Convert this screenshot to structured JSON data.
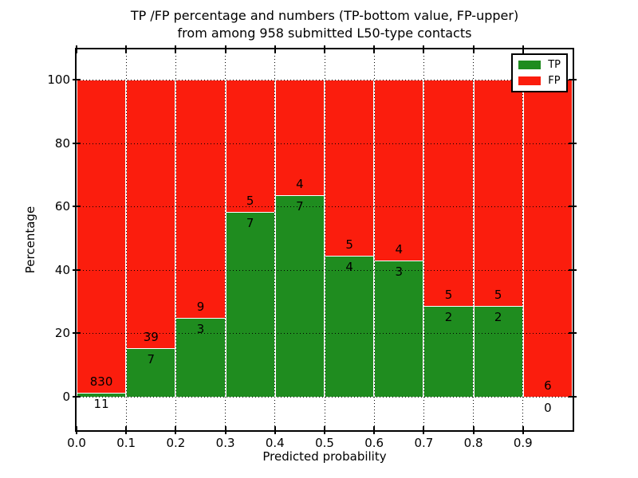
{
  "figure": {
    "kind": "matplotlib-style stacked percentage bar chart"
  },
  "chart_data": {
    "type": "bar",
    "stacked": true,
    "normalized_to_percent": true,
    "title_lines": [
      "TP /FP percentage and numbers (TP-bottom value, FP-upper)",
      "from among 958 submitted L50-type contacts"
    ],
    "xlabel": "Predicted probability",
    "ylabel": "Percentage",
    "total_contacts": 958,
    "bin_width": 0.1,
    "bin_starts": [
      0.0,
      0.1,
      0.2,
      0.3,
      0.4,
      0.5,
      0.6,
      0.7,
      0.8,
      0.9
    ],
    "x_tick_labels": [
      "0.0",
      "0.1",
      "0.2",
      "0.3",
      "0.4",
      "0.5",
      "0.6",
      "0.7",
      "0.8",
      "0.9"
    ],
    "y_ticks": [
      0,
      20,
      40,
      60,
      80,
      100
    ],
    "xlim": [
      0.0,
      1.0
    ],
    "ylim": [
      -10.5,
      109.5
    ],
    "grid": {
      "style": "dotted",
      "color": "#000000",
      "on": true
    },
    "series": [
      {
        "name": "TP",
        "color": "#1f8c1f",
        "counts": [
          11,
          7,
          3,
          7,
          7,
          4,
          3,
          2,
          2,
          0
        ]
      },
      {
        "name": "FP",
        "color": "#fb1d0d",
        "counts": [
          830,
          39,
          9,
          5,
          4,
          5,
          4,
          5,
          5,
          6
        ]
      }
    ],
    "tp_percent": [
      1.31,
      15.22,
      25.0,
      58.33,
      63.64,
      44.44,
      42.86,
      28.57,
      28.57,
      0.0
    ],
    "annotation_rule": "FP count printed just above TP-bar top, TP count just below it",
    "legend": {
      "position": "upper right",
      "entries": [
        "TP",
        "FP"
      ]
    }
  }
}
